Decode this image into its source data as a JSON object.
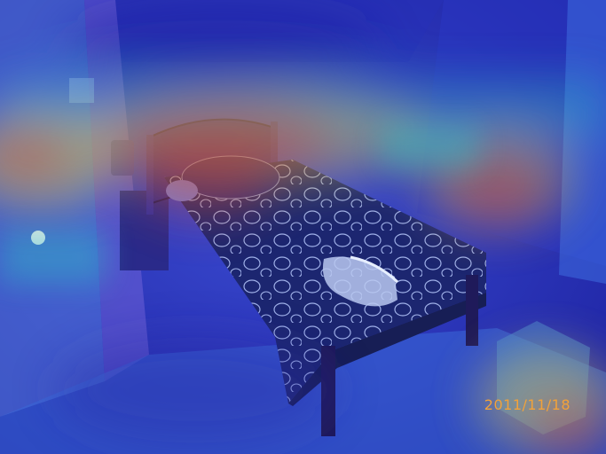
{
  "photo": {
    "timestamp": "2011/11/18"
  },
  "colors": {
    "heatmap_low": "#1b1f9e",
    "heatmap_mid": "#2fc7c2",
    "heatmap_warm": "#e6d64a",
    "heatmap_high": "#e0442a",
    "timestamp": "#f2a23a"
  }
}
